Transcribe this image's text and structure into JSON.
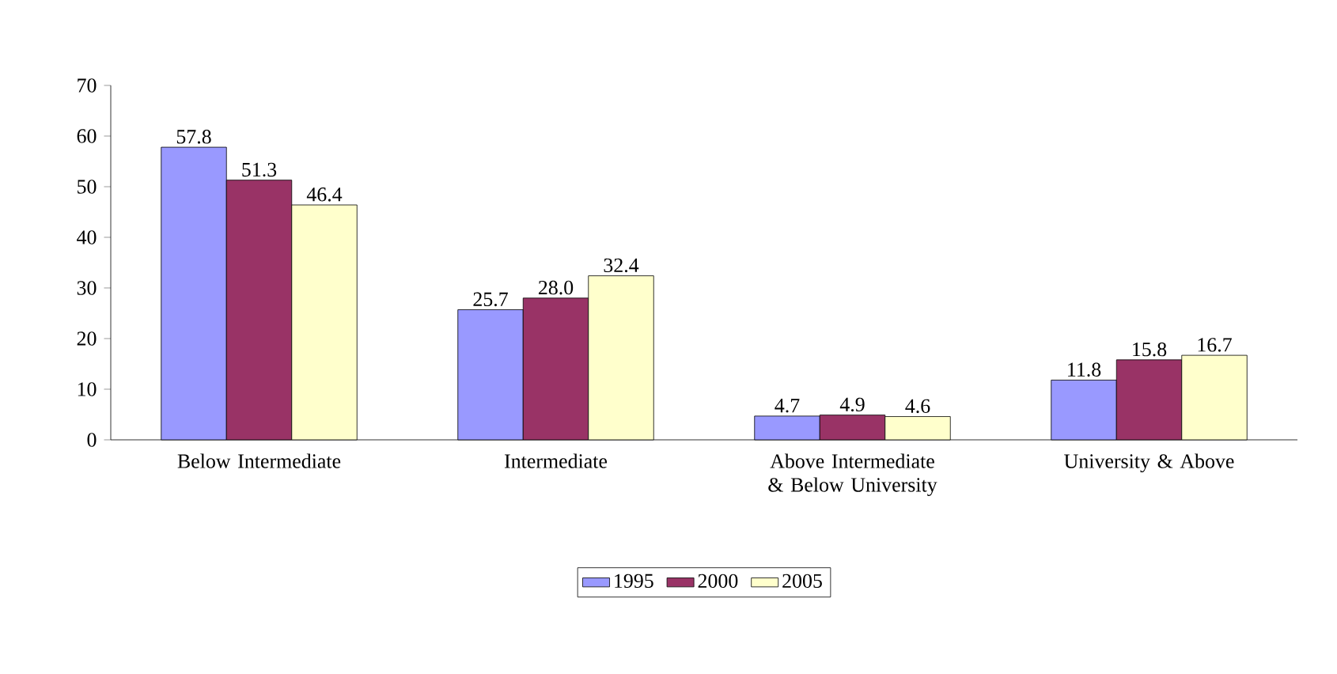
{
  "chart_data": {
    "type": "bar",
    "categories": [
      "Below Intermediate",
      "Intermediate",
      "Above Intermediate & Below University",
      "University & Above"
    ],
    "series": [
      {
        "name": "1995",
        "color": "#9999ff",
        "values": [
          57.8,
          25.7,
          4.7,
          11.8
        ],
        "value_labels": [
          "57.8",
          "25.7",
          "4.7",
          "11.8"
        ]
      },
      {
        "name": "2000",
        "color": "#993366",
        "values": [
          51.3,
          28.0,
          4.9,
          15.8
        ],
        "value_labels": [
          "51.3",
          "28.0",
          "4.9",
          "15.8"
        ]
      },
      {
        "name": "2005",
        "color": "#ffffcc",
        "values": [
          46.4,
          32.4,
          4.6,
          16.7
        ],
        "value_labels": [
          "46.4",
          "32.4",
          "4.6",
          "16.7"
        ]
      }
    ],
    "ylim": [
      0,
      70
    ],
    "yticks": [
      0,
      10,
      20,
      30,
      40,
      50,
      60,
      70
    ],
    "legend": "bottom"
  }
}
